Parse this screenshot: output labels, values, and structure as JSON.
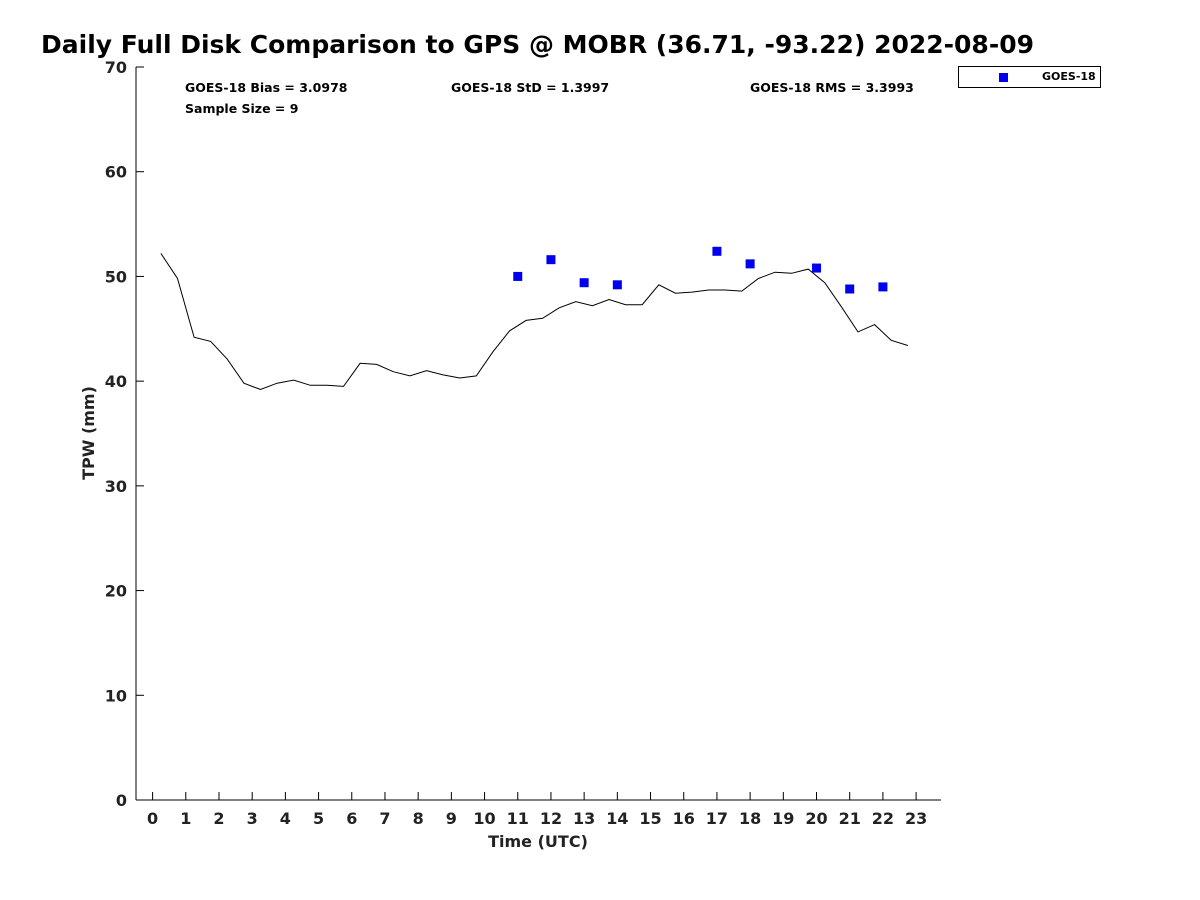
{
  "chart_data": {
    "type": "line",
    "title": "Daily Full Disk Comparison to GPS @ MOBR (36.71, -93.22) 2022-08-09",
    "xlabel": "Time (UTC)",
    "ylabel": "TPW (mm)",
    "xlim": [
      -0.5,
      23.75
    ],
    "ylim": [
      0,
      70
    ],
    "x_ticks": [
      0,
      1,
      2,
      3,
      4,
      5,
      6,
      7,
      8,
      9,
      10,
      11,
      12,
      13,
      14,
      15,
      16,
      17,
      18,
      19,
      20,
      21,
      22,
      23
    ],
    "y_ticks": [
      0,
      10,
      20,
      30,
      40,
      50,
      60,
      70
    ],
    "grid": false,
    "legend_position": "top-right outside",
    "series": [
      {
        "style": "line",
        "color": "#000000",
        "x": [
          0.25,
          0.75,
          1.25,
          1.75,
          2.25,
          2.75,
          3.25,
          3.75,
          4.25,
          4.75,
          5.25,
          5.75,
          6.25,
          6.75,
          7.25,
          7.75,
          8.25,
          8.75,
          9.25,
          9.75,
          10.25,
          10.75,
          11.25,
          11.75,
          12.25,
          12.75,
          13.25,
          13.75,
          14.25,
          14.75,
          15.25,
          15.75,
          16.25,
          16.75,
          17.25,
          17.75,
          18.25,
          18.75,
          19.25,
          19.75,
          20.25,
          20.75,
          21.25,
          21.75,
          22.25,
          22.75
        ],
        "y": [
          52.2,
          49.8,
          44.2,
          43.8,
          42.1,
          39.8,
          39.2,
          39.8,
          40.1,
          39.6,
          39.6,
          39.5,
          41.7,
          41.6,
          40.9,
          40.5,
          41.0,
          40.6,
          40.3,
          40.5,
          42.8,
          44.8,
          45.8,
          46.0,
          47.0,
          47.6,
          47.2,
          47.8,
          47.3,
          47.3,
          49.2,
          48.4,
          48.5,
          48.7,
          48.7,
          48.6,
          49.8,
          50.4,
          50.3,
          50.7,
          49.4,
          47.1,
          44.7,
          45.4,
          43.9,
          43.4
        ]
      },
      {
        "name": "GOES-18",
        "style": "square-markers",
        "color": "#0000ee",
        "x": [
          11,
          12,
          13,
          14,
          17,
          18,
          20,
          21,
          22
        ],
        "y": [
          50.0,
          51.6,
          49.4,
          49.2,
          52.4,
          51.2,
          50.8,
          48.8,
          49.0
        ]
      }
    ]
  },
  "stats": {
    "bias": "GOES-18 Bias = 3.0978",
    "std": "GOES-18 StD = 1.3997",
    "rms": "GOES-18 RMS = 3.3993",
    "sample": "Sample Size = 9"
  },
  "legend": {
    "label": "GOES-18"
  }
}
